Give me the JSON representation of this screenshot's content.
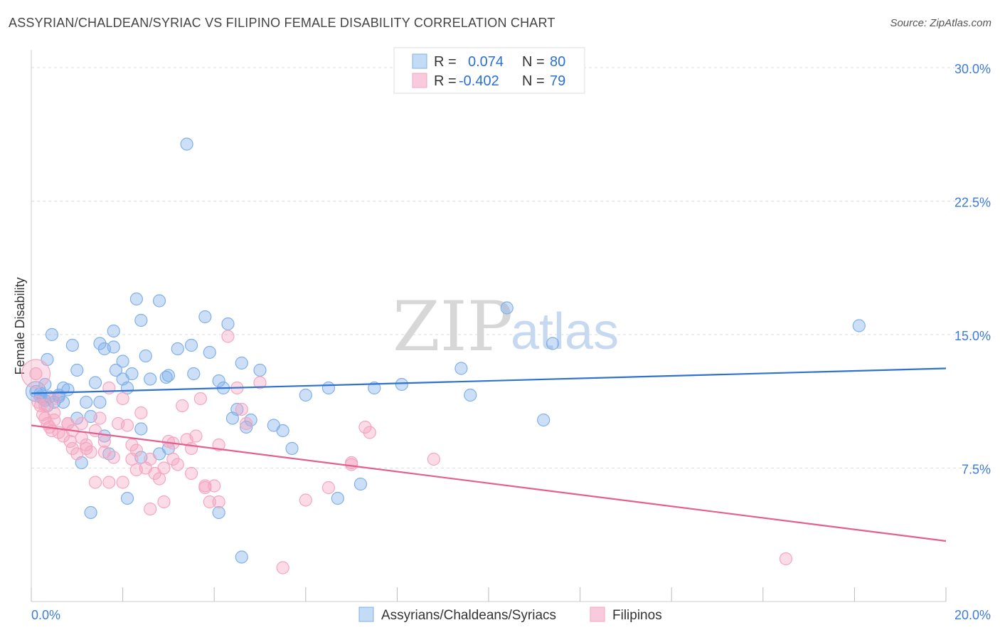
{
  "title": "ASSYRIAN/CHALDEAN/SYRIAC VS FILIPINO FEMALE DISABILITY CORRELATION CHART",
  "source": "Source: ZipAtlas.com",
  "watermark": {
    "part1": "ZIP",
    "part2": "atlas"
  },
  "chart_data": {
    "type": "scatter",
    "title": "ASSYRIAN/CHALDEAN/SYRIAC VS FILIPINO FEMALE DISABILITY CORRELATION CHART",
    "xlabel": "",
    "ylabel": "Female Disability",
    "xlim": [
      0,
      20
    ],
    "ylim": [
      0,
      31
    ],
    "x_tick_labels": [
      "0.0%",
      "20.0%"
    ],
    "y_ticks": [
      7.5,
      15.0,
      22.5,
      30.0
    ],
    "y_tick_labels": [
      "7.5%",
      "15.0%",
      "22.5%",
      "30.0%"
    ],
    "grid": true,
    "legend": {
      "position": "top-center",
      "entries": [
        {
          "r_label": "R =",
          "r_value": "0.074",
          "n_label": "N =",
          "n_value": "80"
        },
        {
          "r_label": "R =",
          "r_value": "-0.402",
          "n_label": "N =",
          "n_value": "79"
        }
      ]
    },
    "series": [
      {
        "name": "Assyrians/Chaldeans/Syriacs",
        "color": "#7fb0ea",
        "line_color": "#2f72d0",
        "trend": {
          "x": [
            0,
            20
          ],
          "y": [
            11.7,
            13.1
          ]
        },
        "points": [
          [
            0.1,
            11.8
          ],
          [
            0.2,
            11.5
          ],
          [
            0.3,
            11.3
          ],
          [
            0.35,
            11.0
          ],
          [
            0.4,
            11.5
          ],
          [
            0.5,
            11.2
          ],
          [
            0.6,
            11.5
          ],
          [
            0.7,
            11.2
          ],
          [
            0.2,
            11.7
          ],
          [
            0.25,
            11.4
          ],
          [
            0.3,
            12.2
          ],
          [
            0.35,
            13.6
          ],
          [
            0.45,
            15.0
          ],
          [
            0.6,
            11.6
          ],
          [
            0.7,
            12.0
          ],
          [
            0.8,
            11.9
          ],
          [
            0.9,
            14.4
          ],
          [
            1.0,
            13.0
          ],
          [
            1.2,
            11.2
          ],
          [
            1.3,
            10.4
          ],
          [
            1.4,
            12.3
          ],
          [
            1.5,
            14.5
          ],
          [
            1.6,
            14.2
          ],
          [
            1.8,
            15.2
          ],
          [
            1.85,
            13.0
          ],
          [
            2.0,
            13.5
          ],
          [
            2.1,
            12.0
          ],
          [
            2.2,
            12.8
          ],
          [
            2.3,
            17.0
          ],
          [
            2.4,
            15.8
          ],
          [
            2.5,
            13.8
          ],
          [
            2.6,
            12.5
          ],
          [
            2.8,
            16.9
          ],
          [
            2.95,
            12.6
          ],
          [
            3.0,
            12.7
          ],
          [
            3.2,
            14.2
          ],
          [
            3.5,
            14.4
          ],
          [
            3.55,
            12.8
          ],
          [
            3.4,
            25.7
          ],
          [
            3.8,
            16.0
          ],
          [
            3.9,
            14.0
          ],
          [
            4.1,
            12.4
          ],
          [
            4.2,
            12.0
          ],
          [
            4.3,
            15.6
          ],
          [
            4.4,
            10.3
          ],
          [
            4.5,
            10.8
          ],
          [
            4.6,
            13.4
          ],
          [
            4.7,
            9.8
          ],
          [
            4.8,
            10.2
          ],
          [
            5.0,
            13.0
          ],
          [
            5.3,
            9.9
          ],
          [
            5.5,
            9.6
          ],
          [
            5.7,
            8.6
          ],
          [
            6.0,
            11.6
          ],
          [
            6.5,
            12.0
          ],
          [
            6.7,
            5.8
          ],
          [
            7.2,
            6.6
          ],
          [
            7.5,
            12.0
          ],
          [
            8.1,
            12.2
          ],
          [
            9.4,
            13.1
          ],
          [
            9.6,
            11.6
          ],
          [
            10.4,
            16.5
          ],
          [
            11.2,
            10.2
          ],
          [
            11.4,
            14.5
          ],
          [
            1.1,
            7.8
          ],
          [
            1.6,
            9.3
          ],
          [
            1.7,
            8.3
          ],
          [
            2.1,
            5.8
          ],
          [
            2.4,
            8.1
          ],
          [
            2.8,
            8.3
          ],
          [
            3.0,
            8.6
          ],
          [
            4.1,
            5.0
          ],
          [
            4.6,
            2.5
          ],
          [
            1.3,
            5.0
          ],
          [
            1.0,
            10.3
          ],
          [
            1.5,
            11.2
          ],
          [
            18.1,
            15.5
          ],
          [
            2.0,
            12.5
          ],
          [
            1.8,
            14.3
          ],
          [
            2.4,
            9.7
          ]
        ]
      },
      {
        "name": "Filipinos",
        "color": "#f4a6c0",
        "line_color": "#e4608c",
        "trend": {
          "x": [
            0,
            20
          ],
          "y": [
            9.9,
            3.4
          ]
        },
        "points": [
          [
            0.1,
            12.8
          ],
          [
            0.15,
            11.2
          ],
          [
            0.2,
            11.0
          ],
          [
            0.25,
            10.5
          ],
          [
            0.3,
            10.3
          ],
          [
            0.35,
            10.0
          ],
          [
            0.4,
            9.8
          ],
          [
            0.45,
            9.6
          ],
          [
            0.5,
            10.2
          ],
          [
            0.6,
            9.5
          ],
          [
            0.7,
            9.3
          ],
          [
            0.8,
            10.0
          ],
          [
            0.85,
            9.0
          ],
          [
            0.9,
            8.6
          ],
          [
            1.0,
            8.3
          ],
          [
            1.1,
            9.2
          ],
          [
            1.2,
            8.8
          ],
          [
            1.3,
            8.4
          ],
          [
            1.4,
            9.6
          ],
          [
            1.5,
            10.3
          ],
          [
            1.6,
            8.4
          ],
          [
            1.7,
            12.0
          ],
          [
            1.8,
            8.1
          ],
          [
            1.9,
            10.0
          ],
          [
            2.0,
            11.4
          ],
          [
            2.1,
            9.9
          ],
          [
            2.2,
            8.8
          ],
          [
            2.3,
            8.5
          ],
          [
            2.4,
            10.6
          ],
          [
            2.5,
            7.5
          ],
          [
            2.6,
            8.0
          ],
          [
            2.7,
            7.2
          ],
          [
            2.8,
            6.9
          ],
          [
            2.9,
            7.5
          ],
          [
            3.0,
            9.0
          ],
          [
            3.1,
            8.9
          ],
          [
            3.2,
            7.7
          ],
          [
            3.3,
            11.0
          ],
          [
            3.4,
            9.1
          ],
          [
            3.5,
            7.2
          ],
          [
            3.6,
            9.3
          ],
          [
            3.7,
            11.4
          ],
          [
            3.8,
            6.5
          ],
          [
            3.9,
            5.6
          ],
          [
            4.0,
            6.5
          ],
          [
            4.1,
            8.8
          ],
          [
            4.3,
            14.9
          ],
          [
            4.5,
            12.0
          ],
          [
            4.6,
            10.8
          ],
          [
            4.7,
            10.0
          ],
          [
            5.0,
            12.3
          ],
          [
            5.5,
            1.9
          ],
          [
            6.0,
            5.7
          ],
          [
            6.5,
            6.4
          ],
          [
            7.0,
            7.7
          ],
          [
            7.3,
            9.8
          ],
          [
            7.4,
            9.5
          ],
          [
            7.0,
            7.8
          ],
          [
            8.8,
            8.0
          ],
          [
            16.5,
            2.4
          ],
          [
            0.5,
            11.4
          ],
          [
            0.9,
            9.6
          ],
          [
            1.4,
            6.7
          ],
          [
            1.7,
            6.7
          ],
          [
            2.0,
            6.7
          ],
          [
            2.6,
            5.2
          ],
          [
            2.9,
            5.6
          ],
          [
            3.1,
            8.0
          ],
          [
            3.5,
            8.6
          ],
          [
            3.8,
            6.4
          ],
          [
            4.1,
            5.6
          ],
          [
            2.2,
            8.0
          ],
          [
            1.6,
            9.0
          ],
          [
            1.2,
            8.6
          ],
          [
            0.8,
            10.0
          ],
          [
            2.3,
            7.4
          ],
          [
            1.1,
            10.0
          ],
          [
            0.5,
            10.6
          ],
          [
            0.3,
            11.0
          ]
        ]
      }
    ]
  },
  "bottom_legend": [
    {
      "label": "Assyrians/Chaldeans/Syriacs"
    },
    {
      "label": "Filipinos"
    }
  ]
}
